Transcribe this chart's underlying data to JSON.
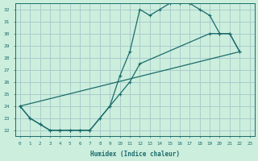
{
  "xlabel": "Humidex (Indice chaleur)",
  "bg_color": "#cceedd",
  "grid_color": "#aacccc",
  "line_color": "#1a6b6b",
  "xlim": [
    -0.5,
    23.5
  ],
  "ylim": [
    21.5,
    32.5
  ],
  "xticks": [
    0,
    1,
    2,
    3,
    4,
    5,
    6,
    7,
    8,
    9,
    10,
    11,
    12,
    13,
    14,
    15,
    16,
    17,
    18,
    19,
    20,
    21,
    22,
    23
  ],
  "yticks": [
    22,
    23,
    24,
    25,
    26,
    27,
    28,
    29,
    30,
    31,
    32
  ],
  "curve1_x": [
    0,
    1,
    2,
    3,
    4,
    5,
    6,
    7,
    8,
    9,
    10,
    11,
    12,
    13,
    14,
    15,
    16,
    17,
    18,
    19,
    20,
    21,
    22
  ],
  "curve1_y": [
    24,
    23,
    22.5,
    22,
    22,
    22,
    22,
    22,
    23,
    24,
    26.5,
    28.5,
    32,
    31.5,
    32,
    32.5,
    32.5,
    32.5,
    32,
    31.5,
    30,
    30,
    28.5
  ],
  "curve2_x": [
    0,
    1,
    2,
    3,
    4,
    5,
    6,
    7,
    9,
    10,
    11,
    12,
    19,
    20,
    21,
    22
  ],
  "curve2_y": [
    24,
    23,
    22.5,
    22,
    22,
    22,
    22,
    22,
    24,
    25,
    26,
    27.5,
    30,
    30,
    30,
    28.5
  ],
  "curve3_x": [
    0,
    22
  ],
  "curve3_y": [
    24,
    28.5
  ]
}
